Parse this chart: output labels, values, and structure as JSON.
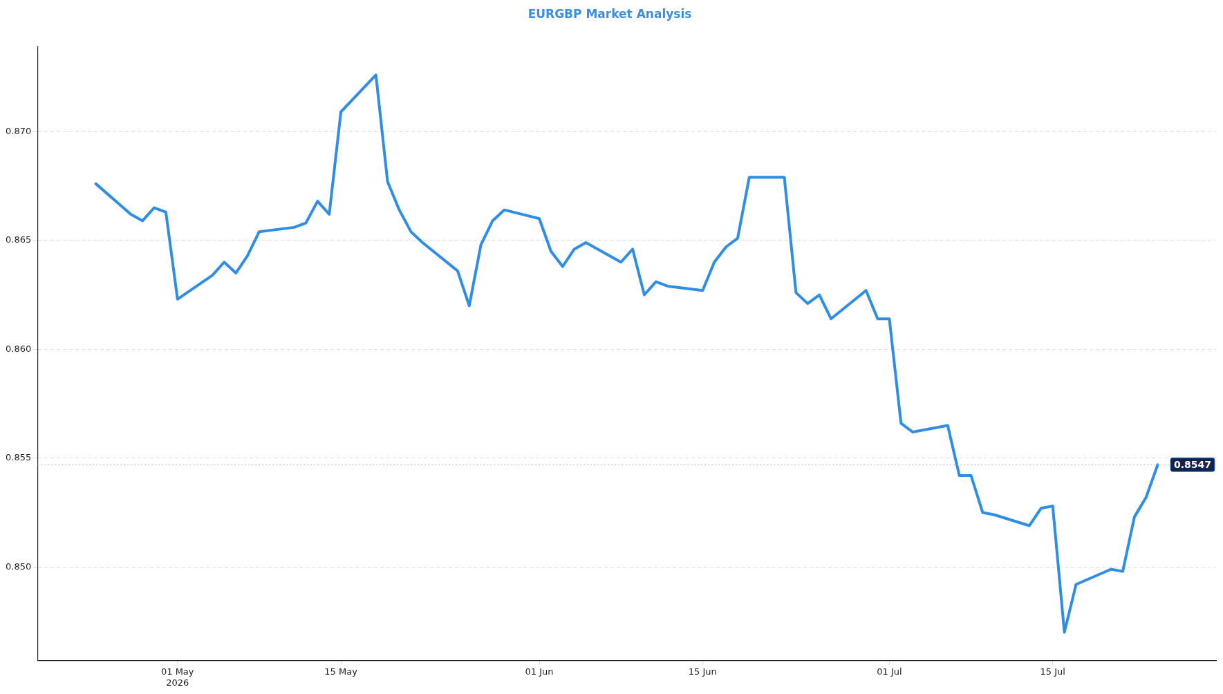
{
  "chart_data": {
    "type": "line",
    "title": "EURGBP Market Analysis",
    "x": [
      "2026-04-24",
      "2026-04-27",
      "2026-04-28",
      "2026-04-29",
      "2026-04-30",
      "2026-05-01",
      "2026-05-04",
      "2026-05-05",
      "2026-05-06",
      "2026-05-07",
      "2026-05-08",
      "2026-05-11",
      "2026-05-12",
      "2026-05-13",
      "2026-05-14",
      "2026-05-15",
      "2026-05-18",
      "2026-05-19",
      "2026-05-20",
      "2026-05-21",
      "2026-05-22",
      "2026-05-25",
      "2026-05-26",
      "2026-05-27",
      "2026-05-28",
      "2026-05-29",
      "2026-06-01",
      "2026-06-02",
      "2026-06-03",
      "2026-06-04",
      "2026-06-05",
      "2026-06-08",
      "2026-06-09",
      "2026-06-10",
      "2026-06-11",
      "2026-06-12",
      "2026-06-15",
      "2026-06-16",
      "2026-06-17",
      "2026-06-18",
      "2026-06-19",
      "2026-06-22",
      "2026-06-23",
      "2026-06-24",
      "2026-06-25",
      "2026-06-26",
      "2026-06-29",
      "2026-06-30",
      "2026-07-01",
      "2026-07-02",
      "2026-07-03",
      "2026-07-06",
      "2026-07-07",
      "2026-07-08",
      "2026-07-09",
      "2026-07-10",
      "2026-07-13",
      "2026-07-14",
      "2026-07-15",
      "2026-07-16",
      "2026-07-17",
      "2026-07-20",
      "2026-07-21",
      "2026-07-22",
      "2026-07-23",
      "2026-07-24"
    ],
    "series": [
      {
        "color": "#2e8de6",
        "values": [
          0.8676,
          0.8662,
          0.8659,
          0.8665,
          0.8663,
          0.8623,
          0.8634,
          0.864,
          0.8635,
          0.8643,
          0.8654,
          0.8656,
          0.8658,
          0.8668,
          0.8662,
          0.8709,
          0.8726,
          0.8677,
          0.8664,
          0.8654,
          0.8649,
          0.8636,
          0.862,
          0.8648,
          0.8659,
          0.8664,
          0.866,
          0.8645,
          0.8638,
          0.8646,
          0.8649,
          0.864,
          0.8646,
          0.8625,
          0.8631,
          0.8629,
          0.8627,
          0.864,
          0.8647,
          0.8651,
          0.8679,
          0.8679,
          0.8626,
          0.8621,
          0.8625,
          0.8614,
          0.8627,
          0.8614,
          0.8614,
          0.8566,
          0.8562,
          0.8565,
          0.8542,
          0.8542,
          0.8525,
          0.8524,
          0.8519,
          0.8527,
          0.8528,
          0.847,
          0.8492,
          0.8499,
          0.8498,
          0.8523,
          0.8532,
          0.8547
        ]
      }
    ],
    "xlim": [
      "2026-04-19",
      "2026-07-29"
    ],
    "xticks": [
      {
        "value": "2026-05-01",
        "label": "01 May\n2026"
      },
      {
        "value": "2026-05-15",
        "label": "15 May"
      },
      {
        "value": "2026-06-01",
        "label": "01 Jun"
      },
      {
        "value": "2026-06-15",
        "label": "15 Jun"
      },
      {
        "value": "2026-07-01",
        "label": "01 Jul"
      },
      {
        "value": "2026-07-15",
        "label": "15 Jul"
      }
    ],
    "ylim": [
      0.8457,
      0.8739
    ],
    "yticks": [
      {
        "value": 0.85,
        "label": "0.850"
      },
      {
        "value": 0.855,
        "label": "0.855"
      },
      {
        "value": 0.86,
        "label": "0.860"
      },
      {
        "value": 0.865,
        "label": "0.865"
      },
      {
        "value": 0.87,
        "label": "0.870"
      }
    ],
    "grid": "y",
    "legend": false,
    "marker": "none",
    "line_style": "solid",
    "ref_lines": [
      {
        "axis": "y",
        "value": 0.8547,
        "label": "0.8547",
        "color": "#b0b0b0",
        "line_style": "dotted"
      }
    ]
  }
}
